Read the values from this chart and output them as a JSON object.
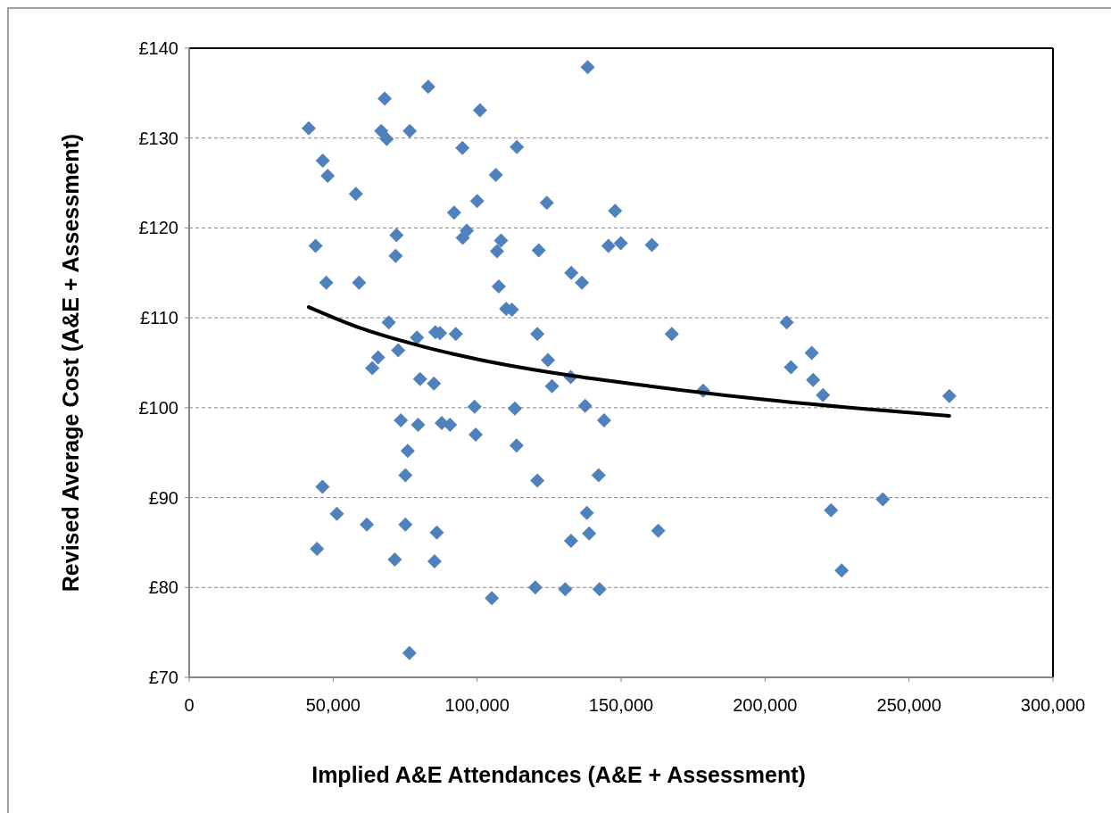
{
  "chart_data": {
    "type": "scatter",
    "xlabel": "Implied A&E Attendances (A&E + Assessment)",
    "ylabel": "Revised Average Cost (A&E + Assessment)",
    "xlim": [
      0,
      300000
    ],
    "xticks": [
      0,
      {
        "value": 50000,
        "label": "50,000"
      },
      {
        "value": 100000,
        "label": "100,000"
      },
      {
        "value": 150000,
        "label": "150,000"
      },
      {
        "value": 200000,
        "label": "200,000"
      },
      {
        "value": 250000,
        "label": "250,000"
      },
      {
        "value": 300000,
        "label": "300,000"
      }
    ],
    "ylim": [
      70,
      140
    ],
    "yticks": [
      {
        "value": 70,
        "label": "£70"
      },
      {
        "value": 80,
        "label": "£80"
      },
      {
        "value": 90,
        "label": "£90"
      },
      {
        "value": 100,
        "label": "£100"
      },
      {
        "value": 110,
        "label": "£110"
      },
      {
        "value": 120,
        "label": "£120"
      },
      {
        "value": 130,
        "label": "£130"
      },
      {
        "value": 140,
        "label": "£140"
      }
    ],
    "grid": "y",
    "series": [
      {
        "color": "#4f81bd",
        "marker": "diamond",
        "x": [
          41500,
          46400,
          48100,
          57900,
          43900,
          47600,
          59000,
          67900,
          66700,
          68600,
          76600,
          83000,
          94900,
          101000,
          72000,
          71700,
          92000,
          100000,
          96400,
          95000,
          69300,
          79100,
          85500,
          87100,
          92600,
          72600,
          65600,
          63600,
          80200,
          85000,
          99100,
          73500,
          79500,
          87700,
          90600,
          99500,
          75900,
          75100,
          46300,
          51300,
          61700,
          75100,
          86000,
          44400,
          71400,
          85200,
          76500,
          138400,
          113800,
          106500,
          124200,
          147900,
          108300,
          106900,
          121400,
          145600,
          149900,
          160700,
          132700,
          136400,
          107500,
          110100,
          112100,
          120900,
          167600,
          124600,
          126000,
          132500,
          178500,
          113100,
          137500,
          144100,
          113700,
          120900,
          142200,
          138100,
          138900,
          132600,
          162900,
          105100,
          120200,
          130600,
          142500,
          209000,
          216200,
          216700,
          220100,
          264000,
          240900,
          222900,
          226600,
          207500
        ],
        "values": [
          131.1,
          127.5,
          125.8,
          123.8,
          118.0,
          113.9,
          113.9,
          134.4,
          130.8,
          129.9,
          130.8,
          135.7,
          128.9,
          133.1,
          119.2,
          116.9,
          121.7,
          123.0,
          119.7,
          118.9,
          109.5,
          107.8,
          108.4,
          108.3,
          108.2,
          106.4,
          105.6,
          104.4,
          103.2,
          102.7,
          100.1,
          98.6,
          98.1,
          98.3,
          98.1,
          97.0,
          95.2,
          92.5,
          91.2,
          88.2,
          87.0,
          87.0,
          86.1,
          84.3,
          83.1,
          82.9,
          72.7,
          137.9,
          129.0,
          125.9,
          122.8,
          121.9,
          118.6,
          117.4,
          117.5,
          118.0,
          118.3,
          118.1,
          115.0,
          113.9,
          113.5,
          111.0,
          110.9,
          108.2,
          108.2,
          105.3,
          102.4,
          103.4,
          101.9,
          99.9,
          100.2,
          98.6,
          95.8,
          91.9,
          92.5,
          88.3,
          86.0,
          85.2,
          86.3,
          78.8,
          80.0,
          79.8,
          79.8,
          104.5,
          106.1,
          103.1,
          101.4,
          101.3,
          89.8,
          88.6,
          81.9,
          109.5
        ]
      },
      {
        "type": "line",
        "color": "#000000",
        "marker": "none",
        "line_style": "solid",
        "x": [
          41500,
          60000,
          80000,
          100000,
          130000,
          160000,
          200000,
          264000
        ],
        "values": [
          111.2,
          108.8,
          106.9,
          105.4,
          103.7,
          102.4,
          100.9,
          99.1
        ]
      }
    ]
  }
}
